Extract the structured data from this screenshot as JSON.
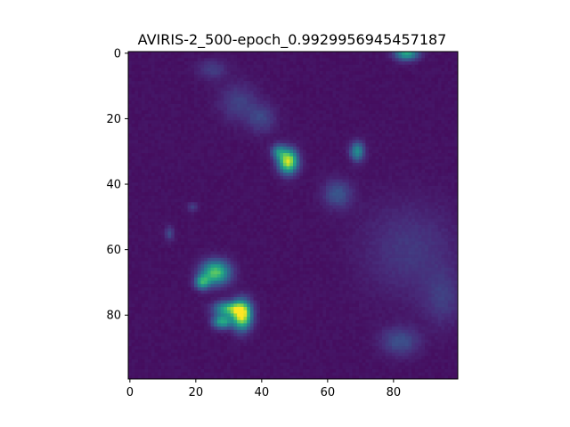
{
  "chart_data": {
    "type": "heatmap",
    "title": "AVIRIS-2_500-epoch_0.9929956945457187",
    "xlabel": "",
    "ylabel": "",
    "x_ticks": [
      "0",
      "20",
      "40",
      "60",
      "80"
    ],
    "y_ticks": [
      "0",
      "20",
      "40",
      "60",
      "80"
    ],
    "grid_size": [
      100,
      100
    ],
    "xlim": [
      -0.5,
      99.5
    ],
    "ylim": [
      99.5,
      -0.5
    ],
    "colormap": "viridis",
    "background_value": 0.05,
    "features": [
      {
        "kind": "blob",
        "x": 84,
        "y": 0,
        "intensity": 0.55,
        "sx": 2.5,
        "sy": 1.5
      },
      {
        "kind": "blob",
        "x": 48,
        "y": 33,
        "intensity": 0.9,
        "sx": 2.0,
        "sy": 2.5
      },
      {
        "kind": "blob",
        "x": 45,
        "y": 30,
        "intensity": 0.35,
        "sx": 1.5,
        "sy": 1.5
      },
      {
        "kind": "blob",
        "x": 69,
        "y": 30,
        "intensity": 0.45,
        "sx": 1.5,
        "sy": 2.0
      },
      {
        "kind": "blob",
        "x": 63,
        "y": 43,
        "intensity": 0.22,
        "sx": 3.0,
        "sy": 3.0
      },
      {
        "kind": "blob",
        "x": 26,
        "y": 67,
        "intensity": 0.7,
        "sx": 3.0,
        "sy": 2.5
      },
      {
        "kind": "blob",
        "x": 22,
        "y": 70,
        "intensity": 0.5,
        "sx": 1.5,
        "sy": 1.5
      },
      {
        "kind": "blob",
        "x": 34,
        "y": 80,
        "intensity": 0.95,
        "sx": 2.0,
        "sy": 3.0
      },
      {
        "kind": "blob",
        "x": 30,
        "y": 78,
        "intensity": 0.6,
        "sx": 3.0,
        "sy": 1.5
      },
      {
        "kind": "blob",
        "x": 28,
        "y": 82,
        "intensity": 0.55,
        "sx": 2.0,
        "sy": 1.5
      },
      {
        "kind": "blob",
        "x": 82,
        "y": 88,
        "intensity": 0.2,
        "sx": 4.0,
        "sy": 3.0
      },
      {
        "kind": "blob",
        "x": 12,
        "y": 55,
        "intensity": 0.18,
        "sx": 1.0,
        "sy": 1.5
      },
      {
        "kind": "blob",
        "x": 19,
        "y": 47,
        "intensity": 0.15,
        "sx": 1.0,
        "sy": 1.0
      },
      {
        "kind": "blob",
        "x": 33,
        "y": 15,
        "intensity": 0.15,
        "sx": 4.0,
        "sy": 4.0
      },
      {
        "kind": "blob",
        "x": 40,
        "y": 20,
        "intensity": 0.16,
        "sx": 3.0,
        "sy": 3.0
      },
      {
        "kind": "blob",
        "x": 25,
        "y": 5,
        "intensity": 0.14,
        "sx": 3.0,
        "sy": 2.0
      },
      {
        "kind": "blob",
        "x": 85,
        "y": 60,
        "intensity": 0.12,
        "sx": 10.0,
        "sy": 10.0
      },
      {
        "kind": "blob",
        "x": 95,
        "y": 75,
        "intensity": 0.12,
        "sx": 4.0,
        "sy": 6.0
      }
    ]
  }
}
